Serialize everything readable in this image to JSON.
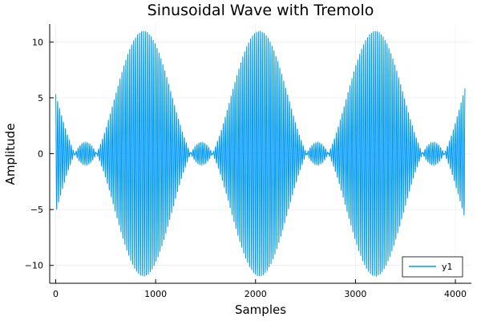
{
  "chart_data": {
    "type": "line",
    "title": "Sinusoidal Wave with Tremolo",
    "xlabel": "Samples",
    "ylabel": "Amplitude",
    "xlim": [
      -60,
      4160
    ],
    "ylim": [
      -11.6,
      11.6
    ],
    "xticks": [
      0,
      1000,
      2000,
      3000,
      4000
    ],
    "xtick_labels": [
      "0",
      "1000",
      "2000",
      "3000",
      "4000"
    ],
    "yticks": [
      -10,
      -5,
      0,
      5,
      10
    ],
    "ytick_labels": [
      "−10",
      "−5",
      "0",
      "5",
      "10"
    ],
    "grid": true,
    "legend_position": "bottom-right",
    "series": [
      {
        "name": "y1",
        "color": "#009af9",
        "x_start": 0,
        "x_end": 4096,
        "cycles": 210,
        "envelope_peak": 11,
        "envelope_period": 1160,
        "envelope_peaks_at": [
          880,
          2040,
          3200
        ],
        "secondary_lobe_peak": 1,
        "secondary_lobes_at": [
          300,
          1460,
          2620,
          3780
        ],
        "amplitude_at_ends": 4.8
      }
    ]
  }
}
